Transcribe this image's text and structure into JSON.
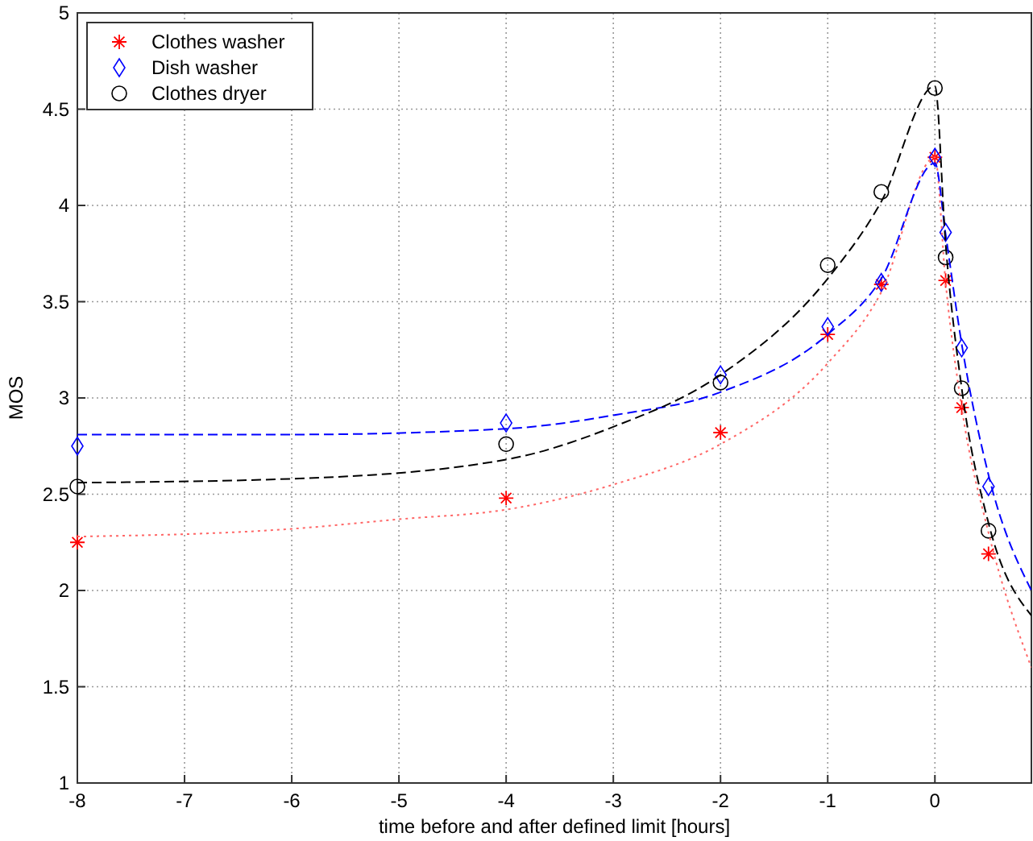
{
  "chart_data": {
    "type": "scatter",
    "xlabel": "time before and after defined limit [hours]",
    "ylabel": "MOS",
    "xlim": [
      -8,
      0.9
    ],
    "ylim": [
      1,
      5
    ],
    "xticks": [
      -8,
      -7,
      -6,
      -5,
      -4,
      -3,
      -2,
      -1,
      0
    ],
    "yticks": [
      1,
      1.5,
      2,
      2.5,
      3,
      3.5,
      4,
      4.5,
      5
    ],
    "grid": true,
    "legend": "top left",
    "series": [
      {
        "name": "Clothes washer",
        "color": "#ff0000",
        "marker": "cross",
        "x": [
          -8,
          -4,
          -2,
          -1,
          -0.5,
          0,
          0.1,
          0.25,
          0.5
        ],
        "values": [
          2.25,
          2.48,
          2.82,
          3.33,
          3.59,
          4.25,
          3.61,
          2.95,
          2.19
        ]
      },
      {
        "name": "Dish washer",
        "color": "#0000ff",
        "marker": "diamond",
        "x": [
          -8,
          -4,
          -2,
          -1,
          -0.5,
          0,
          0.1,
          0.25,
          0.5
        ],
        "values": [
          2.75,
          2.87,
          3.12,
          3.37,
          3.6,
          4.25,
          3.86,
          3.26,
          2.54
        ]
      },
      {
        "name": "Clothes dryer",
        "color": "#000000",
        "marker": "circle",
        "x": [
          -8,
          -4,
          -2,
          -1,
          -0.5,
          0,
          0.1,
          0.25,
          0.5
        ],
        "values": [
          2.54,
          2.76,
          3.08,
          3.69,
          4.07,
          4.61,
          3.73,
          3.05,
          2.31
        ]
      },
      {
        "type": "line",
        "color": "#ff6666",
        "line_style": "dotted",
        "marker": "none",
        "x": [
          -8,
          -6,
          -5,
          -4,
          -3,
          -2,
          -1,
          -0.5,
          0,
          0.1,
          0.25,
          0.5,
          0.9
        ],
        "values": [
          2.28,
          2.32,
          2.37,
          2.42,
          2.55,
          2.76,
          3.18,
          3.55,
          4.25,
          3.6,
          2.95,
          2.3,
          1.6
        ]
      },
      {
        "type": "line",
        "color": "#0000ff",
        "line_style": "dashed",
        "marker": "none",
        "x": [
          -8,
          -6,
          -4,
          -3,
          -2,
          -1,
          -0.5,
          0,
          0.1,
          0.25,
          0.5,
          0.9
        ],
        "values": [
          2.81,
          2.81,
          2.84,
          2.91,
          3.03,
          3.33,
          3.62,
          4.22,
          3.85,
          3.28,
          2.6,
          2.0
        ]
      },
      {
        "type": "line",
        "color": "#000000",
        "line_style": "dashed",
        "marker": "none",
        "x": [
          -8,
          -6,
          -4,
          -3,
          -2,
          -1,
          -0.5,
          0,
          0.1,
          0.25,
          0.5,
          0.9
        ],
        "values": [
          2.56,
          2.58,
          2.68,
          2.85,
          3.12,
          3.62,
          4.02,
          4.62,
          3.8,
          3.05,
          2.35,
          1.87
        ]
      }
    ]
  }
}
